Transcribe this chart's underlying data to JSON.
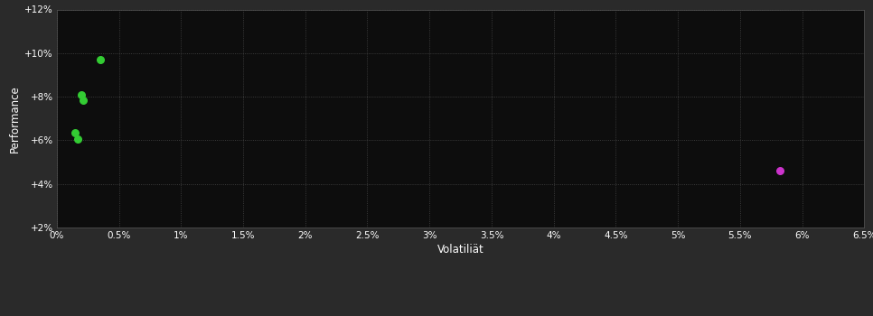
{
  "background_color": "#2a2a2a",
  "plot_bg_color": "#0d0d0d",
  "grid_color": "#555555",
  "text_color": "#ffffff",
  "green_points": [
    [
      0.35,
      9.7
    ],
    [
      0.2,
      8.1
    ],
    [
      0.21,
      7.85
    ],
    [
      0.15,
      6.35
    ],
    [
      0.17,
      6.05
    ]
  ],
  "purple_points": [
    [
      5.82,
      4.6
    ]
  ],
  "green_color": "#33cc33",
  "purple_color": "#cc33cc",
  "xlim": [
    0,
    6.5
  ],
  "ylim": [
    2,
    12
  ],
  "xticks": [
    0,
    0.5,
    1.0,
    1.5,
    2.0,
    2.5,
    3.0,
    3.5,
    4.0,
    4.5,
    5.0,
    5.5,
    6.0,
    6.5
  ],
  "yticks": [
    2,
    4,
    6,
    8,
    10,
    12
  ],
  "xlabel": "Volatiliät",
  "ylabel": "Performance",
  "point_size": 30
}
